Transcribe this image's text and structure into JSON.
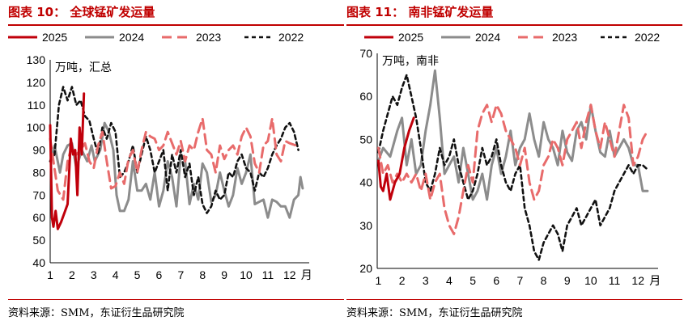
{
  "charts": [
    {
      "title": "图表 10：  全球锰矿发运量",
      "source": "资料来源：SMM，东证衍生品研究院"
    },
    {
      "title": "图表 11：  南非锰矿发运量",
      "source": "资料来源：SMM，东证衍生品研究院"
    }
  ],
  "colors": {
    "c2025": "#c0000b",
    "c2024": "#8c8c8c",
    "c2023": "#e86b6b",
    "c2022": "#111111",
    "brand": "#c00000"
  },
  "chart_data": [
    {
      "type": "line",
      "unit_label": "万吨，汇总",
      "x_unit": "月",
      "x_ticks": [
        1,
        2,
        3,
        4,
        5,
        6,
        7,
        8,
        9,
        10,
        11,
        12
      ],
      "ylim": [
        40,
        130
      ],
      "y_ticks": [
        40,
        50,
        60,
        70,
        80,
        90,
        100,
        110,
        120,
        130
      ],
      "legend": [
        "2025",
        "2024",
        "2023",
        "2022"
      ],
      "series": [
        {
          "name": "2025",
          "x": [
            1.0,
            1.08,
            1.15,
            1.25,
            1.35,
            1.5,
            1.65,
            1.8,
            1.95,
            2.05,
            2.15,
            2.25,
            2.35,
            2.45,
            2.55
          ],
          "y": [
            101,
            60,
            56,
            63,
            55,
            58,
            62,
            66,
            95,
            88,
            90,
            70,
            100,
            88,
            115
          ]
        },
        {
          "name": "2024",
          "x": [
            1.0,
            1.2,
            1.45,
            1.6,
            1.8,
            2.0,
            2.2,
            2.45,
            2.7,
            2.9,
            3.05,
            3.3,
            3.5,
            3.7,
            3.9,
            4.05,
            4.2,
            4.4,
            4.6,
            4.8,
            5.0,
            5.2,
            5.4,
            5.6,
            5.8,
            6.0,
            6.2,
            6.4,
            6.6,
            6.8,
            7.0,
            7.2,
            7.4,
            7.6,
            7.8,
            8.0,
            8.2,
            8.4,
            8.6,
            8.8,
            9.0,
            9.2,
            9.4,
            9.6,
            9.8,
            10.0,
            10.2,
            10.4,
            10.6,
            10.8,
            11.0,
            11.2,
            11.4,
            11.6,
            11.8,
            12.0,
            12.2,
            12.4,
            12.5,
            12.6
          ],
          "y": [
            85,
            92,
            80,
            88,
            92,
            93,
            82,
            90,
            85,
            92,
            85,
            90,
            102,
            98,
            90,
            70,
            63,
            63,
            68,
            85,
            72,
            72,
            75,
            68,
            80,
            65,
            72,
            85,
            78,
            65,
            88,
            85,
            66,
            75,
            68,
            84,
            80,
            67,
            70,
            80,
            72,
            65,
            70,
            82,
            75,
            80,
            88,
            66,
            67,
            68,
            60,
            68,
            67,
            65,
            65,
            60,
            68,
            70,
            78,
            73
          ]
        },
        {
          "name": "2023",
          "x": [
            1.0,
            1.15,
            1.35,
            1.6,
            1.8,
            2.0,
            2.2,
            2.4,
            2.6,
            2.8,
            3.0,
            3.2,
            3.4,
            3.6,
            3.8,
            4.0,
            4.2,
            4.4,
            4.6,
            4.8,
            5.0,
            5.2,
            5.4,
            5.6,
            5.8,
            6.0,
            6.2,
            6.4,
            6.6,
            6.8,
            7.0,
            7.2,
            7.4,
            7.6,
            7.8,
            8.0,
            8.2,
            8.4,
            8.6,
            8.8,
            9.0,
            9.2,
            9.4,
            9.6,
            9.8,
            10.0,
            10.2,
            10.4,
            10.6,
            10.8,
            11.0,
            11.2,
            11.4,
            11.6,
            11.8,
            12.0,
            12.3
          ],
          "y": [
            95,
            85,
            72,
            68,
            85,
            92,
            88,
            90,
            93,
            85,
            82,
            92,
            98,
            85,
            73,
            74,
            80,
            75,
            86,
            90,
            80,
            90,
            98,
            96,
            95,
            90,
            92,
            98,
            93,
            88,
            94,
            85,
            92,
            90,
            98,
            104,
            90,
            88,
            80,
            92,
            86,
            90,
            92,
            88,
            96,
            100,
            96,
            84,
            80,
            92,
            94,
            104,
            88,
            85,
            94,
            93,
            92
          ]
        },
        {
          "name": "2022",
          "x": [
            1.0,
            1.2,
            1.4,
            1.6,
            1.8,
            2.0,
            2.2,
            2.4,
            2.6,
            2.8,
            3.0,
            3.2,
            3.4,
            3.6,
            3.8,
            4.0,
            4.2,
            4.4,
            4.6,
            4.8,
            5.0,
            5.2,
            5.4,
            5.6,
            5.8,
            6.0,
            6.2,
            6.4,
            6.6,
            6.8,
            7.0,
            7.2,
            7.4,
            7.6,
            7.8,
            8.0,
            8.2,
            8.4,
            8.6,
            8.8,
            9.0,
            9.2,
            9.4,
            9.6,
            9.8,
            10.0,
            10.2,
            10.4,
            10.6,
            10.8,
            11.0,
            11.2,
            11.4,
            11.6,
            11.8,
            12.0,
            12.2,
            12.4
          ],
          "y": [
            85,
            88,
            110,
            118,
            112,
            118,
            110,
            112,
            105,
            103,
            95,
            88,
            100,
            95,
            102,
            98,
            78,
            80,
            85,
            92,
            80,
            88,
            96,
            90,
            80,
            85,
            90,
            72,
            88,
            80,
            90,
            78,
            84,
            70,
            78,
            66,
            62,
            65,
            72,
            68,
            70,
            80,
            78,
            85,
            88,
            82,
            80,
            72,
            80,
            78,
            82,
            88,
            92,
            95,
            100,
            102,
            98,
            90
          ]
        }
      ]
    },
    {
      "type": "line",
      "unit_label": "万吨，南非",
      "x_unit": "月",
      "x_ticks": [
        1,
        2,
        3,
        4,
        5,
        6,
        7,
        8,
        9,
        10,
        11,
        12
      ],
      "ylim": [
        20,
        70
      ],
      "y_ticks": [
        20,
        30,
        40,
        50,
        60,
        70
      ],
      "legend": [
        "2025",
        "2024",
        "2023",
        "2022"
      ],
      "series": [
        {
          "name": "2025",
          "x": [
            1.0,
            1.1,
            1.2,
            1.35,
            1.5,
            1.7,
            1.9,
            2.1,
            2.3,
            2.5
          ],
          "y": [
            45,
            39,
            38,
            42,
            36,
            40,
            42,
            48,
            52,
            55
          ]
        },
        {
          "name": "2024",
          "x": [
            1.0,
            1.2,
            1.5,
            1.8,
            2.0,
            2.2,
            2.4,
            2.6,
            2.8,
            3.0,
            3.2,
            3.4,
            3.6,
            3.8,
            4.0,
            4.2,
            4.4,
            4.6,
            4.8,
            5.0,
            5.2,
            5.4,
            5.6,
            5.8,
            6.0,
            6.2,
            6.4,
            6.6,
            6.8,
            7.0,
            7.2,
            7.4,
            7.6,
            7.8,
            8.0,
            8.2,
            8.4,
            8.6,
            8.8,
            9.0,
            9.2,
            9.4,
            9.6,
            9.8,
            10.0,
            10.2,
            10.4,
            10.6,
            10.8,
            11.0,
            11.2,
            11.4,
            11.6,
            11.8,
            12.0,
            12.2,
            12.4
          ],
          "y": [
            45,
            48,
            46,
            52,
            55,
            44,
            50,
            42,
            44,
            52,
            58,
            66,
            55,
            42,
            44,
            46,
            40,
            48,
            42,
            36,
            38,
            42,
            36,
            44,
            48,
            42,
            46,
            52,
            44,
            48,
            50,
            56,
            50,
            46,
            54,
            50,
            48,
            44,
            52,
            47,
            45,
            52,
            54,
            50,
            58,
            52,
            47,
            46,
            52,
            46,
            48,
            50,
            48,
            44,
            44,
            38,
            38
          ]
        },
        {
          "name": "2023",
          "x": [
            1.0,
            1.2,
            1.4,
            1.6,
            1.8,
            2.0,
            2.2,
            2.4,
            2.6,
            2.8,
            3.0,
            3.2,
            3.4,
            3.6,
            3.8,
            4.0,
            4.2,
            4.4,
            4.6,
            4.8,
            5.0,
            5.2,
            5.4,
            5.6,
            5.8,
            6.0,
            6.2,
            6.4,
            6.6,
            6.8,
            7.0,
            7.2,
            7.4,
            7.6,
            7.8,
            8.0,
            8.2,
            8.4,
            8.6,
            8.8,
            9.0,
            9.2,
            9.4,
            9.6,
            9.8,
            10.0,
            10.2,
            10.4,
            10.6,
            10.8,
            11.0,
            11.2,
            11.4,
            11.6,
            11.8,
            12.0,
            12.2,
            12.4
          ],
          "y": [
            48,
            42,
            44,
            40,
            42,
            40,
            42,
            40,
            42,
            38,
            42,
            36,
            40,
            42,
            34,
            30,
            28,
            32,
            38,
            44,
            40,
            52,
            56,
            58,
            54,
            58,
            56,
            52,
            50,
            48,
            44,
            48,
            40,
            36,
            38,
            44,
            46,
            50,
            48,
            44,
            50,
            52,
            54,
            48,
            54,
            58,
            52,
            48,
            54,
            50,
            46,
            52,
            58,
            55,
            44,
            46,
            50,
            52
          ]
        },
        {
          "name": "2022",
          "x": [
            1.0,
            1.2,
            1.4,
            1.6,
            1.8,
            2.0,
            2.2,
            2.4,
            2.6,
            2.8,
            3.0,
            3.2,
            3.4,
            3.6,
            3.8,
            4.0,
            4.2,
            4.4,
            4.6,
            4.8,
            5.0,
            5.2,
            5.4,
            5.6,
            5.8,
            6.0,
            6.2,
            6.4,
            6.6,
            6.8,
            7.0,
            7.2,
            7.4,
            7.6,
            7.8,
            8.0,
            8.2,
            8.4,
            8.6,
            8.8,
            9.0,
            9.2,
            9.4,
            9.6,
            9.8,
            10.0,
            10.2,
            10.4,
            10.6,
            10.8,
            11.0,
            11.2,
            11.4,
            11.6,
            11.8,
            12.0,
            12.2,
            12.4
          ],
          "y": [
            47,
            52,
            56,
            60,
            58,
            62,
            65,
            60,
            55,
            48,
            40,
            38,
            42,
            48,
            44,
            46,
            50,
            44,
            40,
            36,
            38,
            42,
            48,
            44,
            46,
            50,
            44,
            40,
            38,
            42,
            44,
            34,
            30,
            24,
            22,
            26,
            28,
            30,
            28,
            24,
            30,
            32,
            34,
            30,
            32,
            34,
            36,
            30,
            32,
            34,
            38,
            40,
            42,
            44,
            42,
            44,
            44,
            43
          ]
        }
      ]
    }
  ]
}
